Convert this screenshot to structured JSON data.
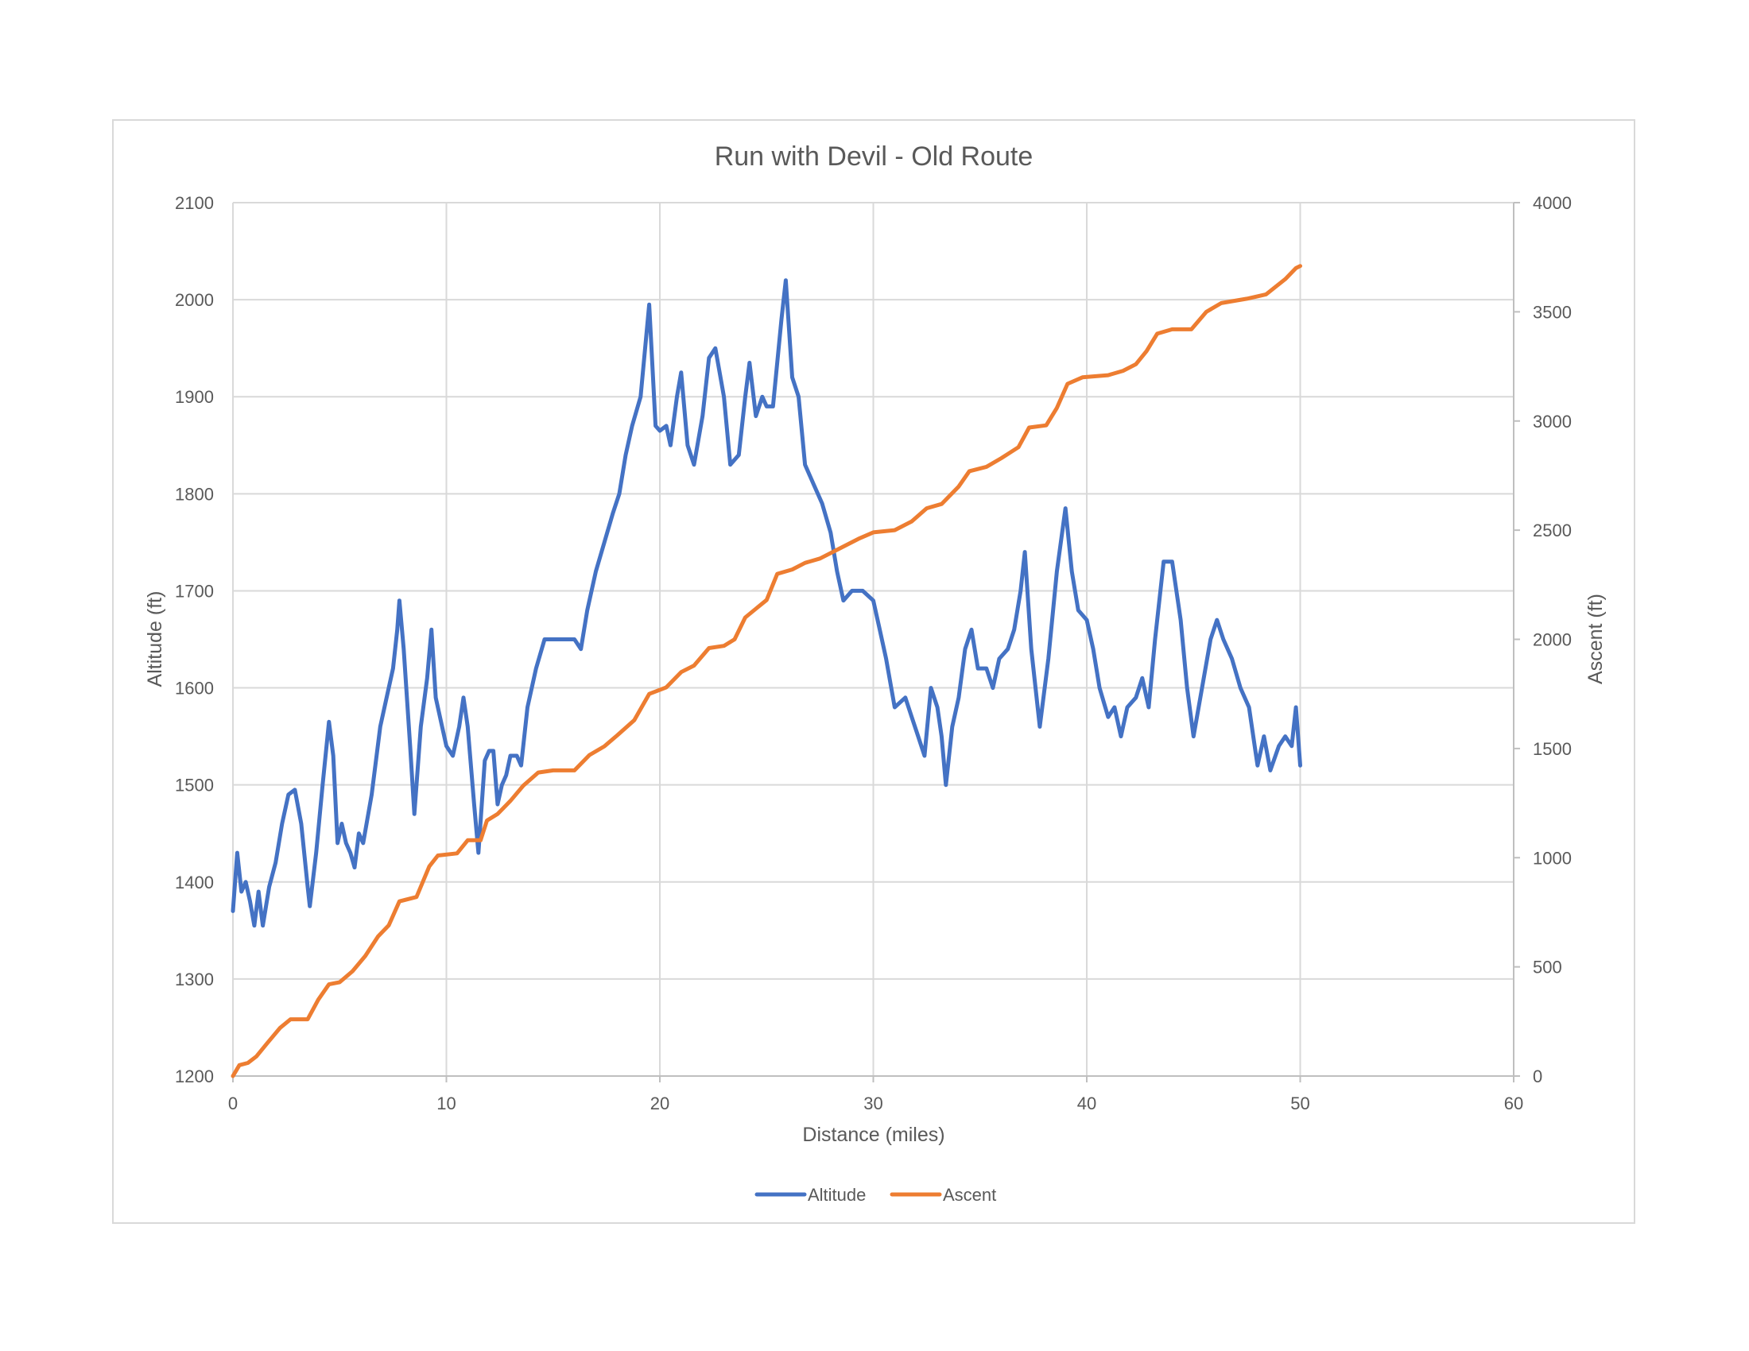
{
  "chart_data": {
    "type": "line",
    "title": "Run with Devil - Old Route",
    "xlabel": "Distance (miles)",
    "ylabel": "Altitude (ft)",
    "y2label": "Ascent (ft)",
    "xlim": [
      0,
      60
    ],
    "ylim": [
      1200,
      2100
    ],
    "y2lim": [
      0,
      4000
    ],
    "x_ticks": [
      0,
      10,
      20,
      30,
      40,
      50,
      60
    ],
    "y_ticks": [
      1200,
      1300,
      1400,
      1500,
      1600,
      1700,
      1800,
      1900,
      2000,
      2100
    ],
    "y2_ticks": [
      0,
      500,
      1000,
      1500,
      2000,
      2500,
      3000,
      3500,
      4000
    ],
    "grid": true,
    "legend_position": "bottom",
    "series": [
      {
        "name": "Altitude",
        "axis": "left",
        "color": "#4472C4",
        "points": [
          [
            0,
            1370
          ],
          [
            0.2,
            1430
          ],
          [
            0.4,
            1390
          ],
          [
            0.6,
            1400
          ],
          [
            0.8,
            1380
          ],
          [
            1.0,
            1355
          ],
          [
            1.2,
            1390
          ],
          [
            1.4,
            1355
          ],
          [
            1.7,
            1395
          ],
          [
            2.0,
            1420
          ],
          [
            2.3,
            1460
          ],
          [
            2.6,
            1490
          ],
          [
            2.9,
            1495
          ],
          [
            3.2,
            1460
          ],
          [
            3.5,
            1395
          ],
          [
            3.6,
            1375
          ],
          [
            3.9,
            1430
          ],
          [
            4.2,
            1500
          ],
          [
            4.5,
            1565
          ],
          [
            4.7,
            1530
          ],
          [
            4.9,
            1440
          ],
          [
            5.1,
            1460
          ],
          [
            5.3,
            1440
          ],
          [
            5.5,
            1430
          ],
          [
            5.7,
            1415
          ],
          [
            5.9,
            1450
          ],
          [
            6.1,
            1440
          ],
          [
            6.5,
            1490
          ],
          [
            6.9,
            1560
          ],
          [
            7.2,
            1590
          ],
          [
            7.5,
            1620
          ],
          [
            7.7,
            1660
          ],
          [
            7.8,
            1690
          ],
          [
            8.0,
            1640
          ],
          [
            8.3,
            1540
          ],
          [
            8.5,
            1470
          ],
          [
            8.8,
            1560
          ],
          [
            9.1,
            1610
          ],
          [
            9.3,
            1660
          ],
          [
            9.5,
            1590
          ],
          [
            9.8,
            1560
          ],
          [
            10.0,
            1540
          ],
          [
            10.3,
            1530
          ],
          [
            10.6,
            1560
          ],
          [
            10.8,
            1590
          ],
          [
            11.0,
            1560
          ],
          [
            11.3,
            1480
          ],
          [
            11.5,
            1430
          ],
          [
            11.8,
            1525
          ],
          [
            12.0,
            1535
          ],
          [
            12.2,
            1535
          ],
          [
            12.4,
            1480
          ],
          [
            12.6,
            1500
          ],
          [
            12.8,
            1510
          ],
          [
            13.0,
            1530
          ],
          [
            13.3,
            1530
          ],
          [
            13.5,
            1520
          ],
          [
            13.8,
            1580
          ],
          [
            14.2,
            1620
          ],
          [
            14.6,
            1650
          ],
          [
            15.0,
            1650
          ],
          [
            16.0,
            1650
          ],
          [
            16.3,
            1640
          ],
          [
            16.6,
            1680
          ],
          [
            17.0,
            1720
          ],
          [
            17.4,
            1750
          ],
          [
            17.8,
            1780
          ],
          [
            18.1,
            1800
          ],
          [
            18.4,
            1840
          ],
          [
            18.7,
            1870
          ],
          [
            19.1,
            1900
          ],
          [
            19.5,
            1995
          ],
          [
            19.8,
            1870
          ],
          [
            20.0,
            1865
          ],
          [
            20.3,
            1870
          ],
          [
            20.5,
            1850
          ],
          [
            20.8,
            1900
          ],
          [
            21.0,
            1925
          ],
          [
            21.3,
            1850
          ],
          [
            21.6,
            1830
          ],
          [
            22.0,
            1880
          ],
          [
            22.3,
            1940
          ],
          [
            22.6,
            1950
          ],
          [
            23.0,
            1900
          ],
          [
            23.3,
            1830
          ],
          [
            23.7,
            1840
          ],
          [
            24.0,
            1900
          ],
          [
            24.2,
            1935
          ],
          [
            24.5,
            1880
          ],
          [
            24.8,
            1900
          ],
          [
            25.0,
            1890
          ],
          [
            25.3,
            1890
          ],
          [
            25.7,
            1980
          ],
          [
            25.9,
            2020
          ],
          [
            26.2,
            1920
          ],
          [
            26.5,
            1900
          ],
          [
            26.8,
            1830
          ],
          [
            27.2,
            1810
          ],
          [
            27.6,
            1790
          ],
          [
            28.0,
            1760
          ],
          [
            28.3,
            1720
          ],
          [
            28.6,
            1690
          ],
          [
            29.0,
            1700
          ],
          [
            29.5,
            1700
          ],
          [
            30.0,
            1690
          ],
          [
            30.3,
            1660
          ],
          [
            30.6,
            1630
          ],
          [
            31.0,
            1580
          ],
          [
            31.5,
            1590
          ],
          [
            31.8,
            1570
          ],
          [
            32.1,
            1550
          ],
          [
            32.4,
            1530
          ],
          [
            32.7,
            1600
          ],
          [
            33.0,
            1580
          ],
          [
            33.2,
            1550
          ],
          [
            33.4,
            1500
          ],
          [
            33.7,
            1560
          ],
          [
            34.0,
            1590
          ],
          [
            34.3,
            1640
          ],
          [
            34.6,
            1660
          ],
          [
            34.9,
            1620
          ],
          [
            35.3,
            1620
          ],
          [
            35.6,
            1600
          ],
          [
            35.9,
            1630
          ],
          [
            36.3,
            1640
          ],
          [
            36.6,
            1660
          ],
          [
            36.9,
            1700
          ],
          [
            37.1,
            1740
          ],
          [
            37.4,
            1640
          ],
          [
            37.8,
            1560
          ],
          [
            38.2,
            1630
          ],
          [
            38.6,
            1720
          ],
          [
            39.0,
            1785
          ],
          [
            39.3,
            1720
          ],
          [
            39.6,
            1680
          ],
          [
            40.0,
            1670
          ],
          [
            40.3,
            1640
          ],
          [
            40.6,
            1600
          ],
          [
            41.0,
            1570
          ],
          [
            41.3,
            1580
          ],
          [
            41.6,
            1550
          ],
          [
            41.9,
            1580
          ],
          [
            42.3,
            1590
          ],
          [
            42.6,
            1610
          ],
          [
            42.9,
            1580
          ],
          [
            43.2,
            1650
          ],
          [
            43.6,
            1730
          ],
          [
            44.0,
            1730
          ],
          [
            44.4,
            1670
          ],
          [
            44.7,
            1600
          ],
          [
            45.0,
            1550
          ],
          [
            45.4,
            1600
          ],
          [
            45.8,
            1650
          ],
          [
            46.1,
            1670
          ],
          [
            46.4,
            1650
          ],
          [
            46.8,
            1630
          ],
          [
            47.2,
            1600
          ],
          [
            47.6,
            1580
          ],
          [
            48.0,
            1520
          ],
          [
            48.3,
            1550
          ],
          [
            48.6,
            1515
          ],
          [
            49.0,
            1540
          ],
          [
            49.3,
            1550
          ],
          [
            49.6,
            1540
          ],
          [
            49.8,
            1580
          ],
          [
            50.0,
            1520
          ]
        ]
      },
      {
        "name": "Ascent",
        "axis": "right",
        "color": "#ED7D31",
        "points": [
          [
            0,
            0
          ],
          [
            0.3,
            50
          ],
          [
            0.7,
            60
          ],
          [
            1.1,
            90
          ],
          [
            1.6,
            150
          ],
          [
            2.2,
            220
          ],
          [
            2.7,
            260
          ],
          [
            3.5,
            260
          ],
          [
            4.0,
            350
          ],
          [
            4.5,
            420
          ],
          [
            5.0,
            430
          ],
          [
            5.6,
            480
          ],
          [
            6.2,
            550
          ],
          [
            6.8,
            640
          ],
          [
            7.3,
            690
          ],
          [
            7.8,
            800
          ],
          [
            8.6,
            820
          ],
          [
            9.2,
            960
          ],
          [
            9.6,
            1010
          ],
          [
            10.5,
            1020
          ],
          [
            11.0,
            1080
          ],
          [
            11.6,
            1080
          ],
          [
            11.9,
            1170
          ],
          [
            12.4,
            1200
          ],
          [
            13.0,
            1260
          ],
          [
            13.6,
            1330
          ],
          [
            14.3,
            1390
          ],
          [
            15.0,
            1400
          ],
          [
            16.0,
            1400
          ],
          [
            16.7,
            1470
          ],
          [
            17.4,
            1510
          ],
          [
            18.0,
            1560
          ],
          [
            18.8,
            1630
          ],
          [
            19.5,
            1750
          ],
          [
            20.3,
            1780
          ],
          [
            21.0,
            1850
          ],
          [
            21.6,
            1880
          ],
          [
            22.3,
            1960
          ],
          [
            23.0,
            1970
          ],
          [
            23.5,
            2000
          ],
          [
            24.0,
            2100
          ],
          [
            24.5,
            2140
          ],
          [
            25.0,
            2180
          ],
          [
            25.5,
            2300
          ],
          [
            26.2,
            2320
          ],
          [
            26.8,
            2350
          ],
          [
            27.5,
            2370
          ],
          [
            28.5,
            2420
          ],
          [
            29.3,
            2460
          ],
          [
            30.0,
            2490
          ],
          [
            31.0,
            2500
          ],
          [
            31.8,
            2540
          ],
          [
            32.5,
            2600
          ],
          [
            33.2,
            2620
          ],
          [
            34.0,
            2700
          ],
          [
            34.5,
            2770
          ],
          [
            35.3,
            2790
          ],
          [
            36.0,
            2830
          ],
          [
            36.8,
            2880
          ],
          [
            37.3,
            2970
          ],
          [
            38.1,
            2980
          ],
          [
            38.6,
            3060
          ],
          [
            39.1,
            3170
          ],
          [
            39.8,
            3200
          ],
          [
            41.0,
            3210
          ],
          [
            41.7,
            3230
          ],
          [
            42.3,
            3260
          ],
          [
            42.8,
            3320
          ],
          [
            43.3,
            3400
          ],
          [
            44.0,
            3420
          ],
          [
            44.9,
            3420
          ],
          [
            45.6,
            3500
          ],
          [
            46.3,
            3540
          ],
          [
            47.5,
            3560
          ],
          [
            48.4,
            3580
          ],
          [
            49.3,
            3650
          ],
          [
            49.8,
            3700
          ],
          [
            50.0,
            3710
          ]
        ]
      }
    ]
  }
}
